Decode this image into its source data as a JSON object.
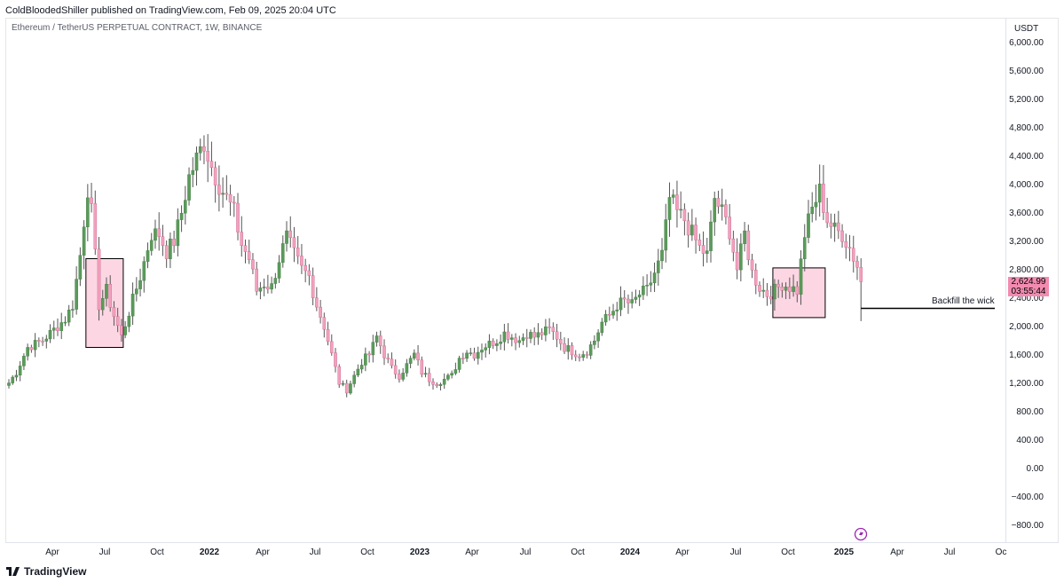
{
  "header": {
    "published": "ColdBloodedShiller published on TradingView.com, Feb 09, 2025 20:04 UTC",
    "symbol": "Ethereum / TetherUS PERPETUAL CONTRACT, 1W, BINANCE"
  },
  "footer": {
    "logo": "TradingView"
  },
  "price_axis": {
    "unit": "USDT",
    "ticks": [
      "6,000.00",
      "5,600.00",
      "5,200.00",
      "4,800.00",
      "4,400.00",
      "4,000.00",
      "3,600.00",
      "3,200.00",
      "2,800.00",
      "2,400.00",
      "2,000.00",
      "1,600.00",
      "1,200.00",
      "800.00",
      "400.00",
      "0.00",
      "−400.00",
      "−800.00"
    ]
  },
  "last_price": {
    "value": "2,624.99",
    "countdown": "03:55:44"
  },
  "annotation": {
    "text": "Backfill the wick",
    "price": 2250
  },
  "colors": {
    "up": "#5b9a5b",
    "down": "#f2a0bd",
    "wick": "#555555",
    "box_fill": "#fcd7e3",
    "label_bg": "#f28bb0"
  },
  "chart_data": {
    "type": "candlestick",
    "interval": "1W",
    "ylim": [
      -900,
      6100
    ],
    "x_labels": [
      "Apr",
      "Jul",
      "Oct",
      "2022",
      "Apr",
      "Jul",
      "Oct",
      "2023",
      "Apr",
      "Jul",
      "Oct",
      "2024",
      "Apr",
      "Jul",
      "Oct",
      "2025",
      "Apr",
      "Jul",
      "Oc"
    ],
    "waypoints": [
      [
        0,
        1200
      ],
      [
        2,
        1350
      ],
      [
        5,
        1700
      ],
      [
        9,
        1800
      ],
      [
        12,
        1950
      ],
      [
        15,
        2100
      ],
      [
        17,
        2300
      ],
      [
        19,
        3000
      ],
      [
        21,
        3950
      ],
      [
        22,
        3600
      ],
      [
        24,
        2300
      ],
      [
        26,
        2500
      ],
      [
        28,
        2150
      ],
      [
        30,
        1850
      ],
      [
        32,
        2200
      ],
      [
        35,
        2700
      ],
      [
        38,
        3300
      ],
      [
        40,
        3300
      ],
      [
        42,
        3050
      ],
      [
        44,
        3200
      ],
      [
        46,
        3600
      ],
      [
        48,
        4100
      ],
      [
        50,
        4350
      ],
      [
        52,
        4600
      ],
      [
        54,
        4250
      ],
      [
        56,
        4000
      ],
      [
        58,
        3800
      ],
      [
        60,
        3600
      ],
      [
        62,
        3150
      ],
      [
        64,
        2950
      ],
      [
        66,
        2500
      ],
      [
        68,
        2600
      ],
      [
        70,
        2550
      ],
      [
        72,
        2950
      ],
      [
        74,
        3250
      ],
      [
        76,
        3000
      ],
      [
        78,
        2800
      ],
      [
        80,
        2700
      ],
      [
        82,
        2300
      ],
      [
        84,
        2000
      ],
      [
        86,
        1600
      ],
      [
        88,
        1200
      ],
      [
        90,
        1100
      ],
      [
        92,
        1300
      ],
      [
        94,
        1500
      ],
      [
        96,
        1600
      ],
      [
        98,
        1850
      ],
      [
        100,
        1600
      ],
      [
        102,
        1400
      ],
      [
        104,
        1300
      ],
      [
        106,
        1450
      ],
      [
        108,
        1600
      ],
      [
        110,
        1350
      ],
      [
        112,
        1250
      ],
      [
        114,
        1200
      ],
      [
        116,
        1250
      ],
      [
        118,
        1300
      ],
      [
        120,
        1550
      ],
      [
        122,
        1650
      ],
      [
        124,
        1600
      ],
      [
        126,
        1700
      ],
      [
        128,
        1750
      ],
      [
        130,
        1800
      ],
      [
        132,
        1900
      ],
      [
        134,
        1850
      ],
      [
        136,
        1800
      ],
      [
        138,
        1900
      ],
      [
        140,
        1850
      ],
      [
        142,
        1900
      ],
      [
        144,
        1950
      ],
      [
        146,
        1850
      ],
      [
        148,
        1700
      ],
      [
        150,
        1650
      ],
      [
        152,
        1600
      ],
      [
        154,
        1650
      ],
      [
        156,
        1800
      ],
      [
        158,
        2050
      ],
      [
        160,
        2150
      ],
      [
        162,
        2300
      ],
      [
        164,
        2350
      ],
      [
        166,
        2300
      ],
      [
        168,
        2450
      ],
      [
        170,
        2500
      ],
      [
        172,
        2750
      ],
      [
        174,
        3000
      ],
      [
        176,
        3800
      ],
      [
        178,
        3600
      ],
      [
        180,
        3500
      ],
      [
        182,
        3300
      ],
      [
        184,
        3100
      ],
      [
        186,
        3000
      ],
      [
        188,
        3800
      ],
      [
        190,
        3600
      ],
      [
        192,
        3350
      ],
      [
        194,
        2800
      ],
      [
        196,
        3300
      ],
      [
        198,
        2750
      ],
      [
        200,
        2550
      ],
      [
        202,
        2450
      ],
      [
        204,
        2500
      ],
      [
        206,
        2600
      ],
      [
        208,
        2550
      ],
      [
        210,
        2500
      ],
      [
        212,
        3300
      ],
      [
        214,
        3650
      ],
      [
        216,
        3900
      ],
      [
        218,
        3500
      ],
      [
        220,
        3350
      ],
      [
        222,
        3300
      ],
      [
        224,
        3100
      ],
      [
        226,
        2850
      ],
      [
        227,
        2625
      ]
    ],
    "boxes": [
      {
        "from": 21,
        "to": 30,
        "low": 1700,
        "high": 2950
      },
      {
        "from": 204,
        "to": 217,
        "low": 2120,
        "high": 2820
      }
    ]
  }
}
